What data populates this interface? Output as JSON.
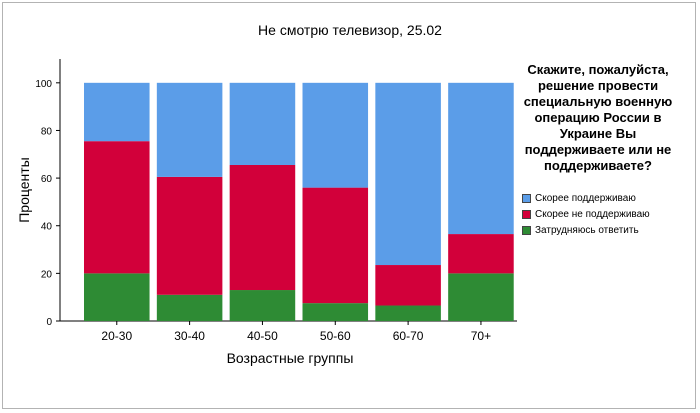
{
  "chart_data": {
    "type": "bar",
    "stacked": true,
    "title": "Не смотрю телевизор, 25.02",
    "xlabel": "Возрастные группы",
    "ylabel": "Проценты",
    "categories": [
      "20-30",
      "30-40",
      "40-50",
      "50-60",
      "60-70",
      "70+"
    ],
    "ylim": [
      0,
      110
    ],
    "yticks": [
      0,
      20,
      40,
      60,
      80,
      100
    ],
    "legend_title": "Скажите, пожалуйста, решение провести специальную военную операцию России в Украине Вы поддерживаете или не поддерживаете?",
    "legend_position": "right",
    "grid": false,
    "series": [
      {
        "name": "Затрудняюсь ответить",
        "color": "#2e8b34",
        "values": [
          20,
          11,
          13,
          7.5,
          6.5,
          20
        ]
      },
      {
        "name": "Скорее не поддерживаю",
        "color": "#d2003a",
        "values": [
          55.5,
          49.5,
          52.5,
          48.5,
          17,
          16.5
        ]
      },
      {
        "name": "Скорее поддерживаю",
        "color": "#5b9de8",
        "values": [
          24.5,
          39.5,
          34.5,
          44,
          76.5,
          63.5
        ]
      }
    ],
    "legend_order": [
      "Скорее поддерживаю",
      "Скорее не поддерживаю",
      "Затрудняюсь ответить"
    ]
  }
}
